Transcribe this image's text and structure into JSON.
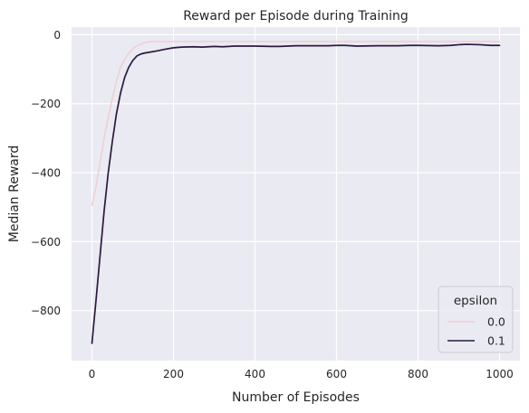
{
  "chart_data": {
    "type": "line",
    "title": "Reward per Episode during Training",
    "xlabel": "Number of Episodes",
    "ylabel": "Median Reward",
    "xlim": [
      -50,
      1050
    ],
    "ylim": [
      -945,
      22
    ],
    "xticks": [
      0,
      200,
      400,
      600,
      800,
      1000
    ],
    "yticks": [
      0,
      -200,
      -400,
      -600,
      -800
    ],
    "grid": true,
    "background": "#eaeaf2",
    "legend": {
      "title": "epsilon",
      "placement": "bottom-right"
    },
    "series": [
      {
        "name": "0.0",
        "color": "#f1cdd1",
        "x": [
          0,
          10,
          20,
          30,
          40,
          50,
          60,
          70,
          80,
          90,
          100,
          110,
          120,
          130,
          140,
          150,
          200,
          300,
          400,
          500,
          600,
          700,
          800,
          900,
          1000
        ],
        "y": [
          -495,
          -440,
          -370,
          -300,
          -240,
          -185,
          -135,
          -95,
          -72,
          -55,
          -42,
          -33,
          -27,
          -23,
          -21,
          -20,
          -20,
          -20,
          -20,
          -20,
          -20,
          -20,
          -20,
          -20,
          -20
        ]
      },
      {
        "name": "0.1",
        "color": "#2a1a3e",
        "x": [
          0,
          10,
          20,
          30,
          40,
          50,
          60,
          70,
          80,
          90,
          100,
          110,
          120,
          130,
          140,
          160,
          180,
          200,
          220,
          250,
          270,
          300,
          320,
          350,
          400,
          440,
          460,
          500,
          550,
          580,
          600,
          620,
          650,
          700,
          750,
          780,
          800,
          850,
          880,
          900,
          920,
          950,
          980,
          1000
        ],
        "y": [
          -895,
          -770,
          -640,
          -510,
          -400,
          -310,
          -230,
          -170,
          -125,
          -95,
          -75,
          -62,
          -56,
          -53,
          -51,
          -47,
          -42,
          -38,
          -36,
          -35,
          -36,
          -34,
          -35,
          -33,
          -33,
          -34,
          -34,
          -32,
          -32,
          -32,
          -31,
          -31,
          -33,
          -32,
          -32,
          -31,
          -31,
          -32,
          -31,
          -29,
          -28,
          -29,
          -31,
          -31
        ]
      }
    ]
  }
}
